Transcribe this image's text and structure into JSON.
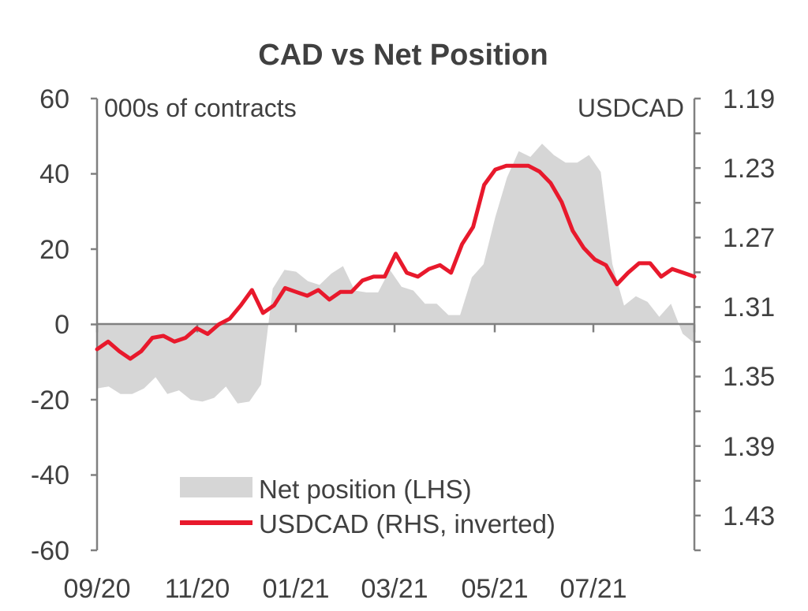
{
  "chart_data": {
    "type": "line",
    "title": "CAD vs Net Position",
    "y_left_label": "000s of contracts",
    "y_right_label": "USDCAD",
    "y_left_ticks": [
      "60",
      "40",
      "20",
      "0",
      "-20",
      "-40",
      "-60"
    ],
    "y_left_range": [
      -60,
      60
    ],
    "y_right_ticks": [
      "1.19",
      "1.23",
      "1.27",
      "1.31",
      "1.35",
      "1.39",
      "1.43"
    ],
    "y_right_range": [
      1.19,
      1.45
    ],
    "y_right_inverted": true,
    "x_ticks": [
      "09/20",
      "11/20",
      "01/21",
      "03/21",
      "05/21",
      "07/21"
    ],
    "grid": false,
    "legend_position": "bottom-center",
    "series": [
      {
        "name": "Net position (LHS)",
        "type": "area",
        "axis": "left",
        "color": "#d6d6d6",
        "values": [
          -17,
          -16.5,
          -18.5,
          -18.5,
          -17,
          -14,
          -18.5,
          -17.5,
          -20,
          -20.5,
          -19.5,
          -16.5,
          -21,
          -20.5,
          -16,
          9.5,
          14.5,
          14,
          11.5,
          10.5,
          13.5,
          15.5,
          9,
          8.5,
          8.5,
          14.5,
          10,
          9,
          5.5,
          5.5,
          2.5,
          2.5,
          12.5,
          16,
          28.5,
          39,
          46,
          44.5,
          48,
          45,
          43,
          43,
          45,
          40.5,
          16,
          5,
          7.5,
          6,
          2,
          5.5,
          -2.5,
          -5
        ]
      },
      {
        "name": "USDCAD (RHS, inverted)",
        "type": "line",
        "axis": "right",
        "color": "#e8192c",
        "values": [
          1.3343,
          1.3299,
          1.3354,
          1.3398,
          1.3354,
          1.3277,
          1.3266,
          1.3299,
          1.3277,
          1.3222,
          1.3255,
          1.32,
          1.3167,
          1.309,
          1.3002,
          1.3134,
          1.309,
          1.2991,
          1.3013,
          1.3035,
          1.3002,
          1.3057,
          1.3013,
          1.3013,
          1.2947,
          1.2925,
          1.2925,
          1.2793,
          1.2903,
          1.2925,
          1.2881,
          1.2859,
          1.2903,
          1.2738,
          1.2639,
          1.2397,
          1.2309,
          1.2287,
          1.2287,
          1.2287,
          1.232,
          1.2386,
          1.2496,
          1.2661,
          1.276,
          1.2826,
          1.2859,
          1.2969,
          1.2903,
          1.2848,
          1.2848,
          1.2925,
          1.2881,
          1.2903,
          1.2925
        ]
      }
    ]
  }
}
